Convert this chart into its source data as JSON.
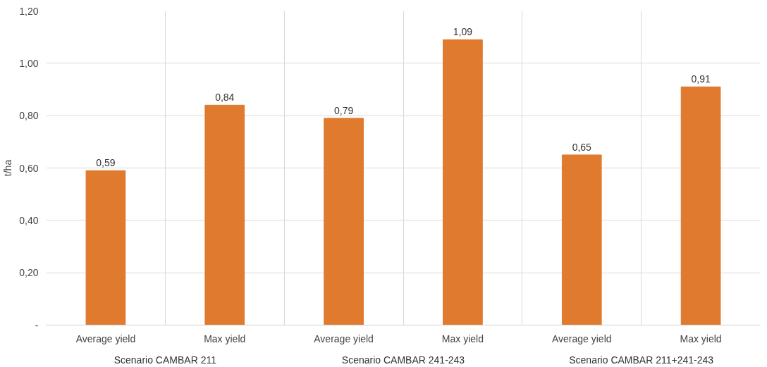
{
  "chart_data": {
    "type": "bar",
    "ylabel": "t/ha",
    "categories": [
      "Average yield",
      "Max yield",
      "Average yield",
      "Max yield",
      "Average yield",
      "Max yield"
    ],
    "values": [
      0.59,
      0.84,
      0.79,
      1.09,
      0.65,
      0.91
    ],
    "value_labels": [
      "0,59",
      "0,84",
      "0,79",
      "1,09",
      "0,65",
      "0,91"
    ],
    "color": "#df7a2f",
    "annotations": [
      "Scenario CAMBAR 211",
      "Scenario CAMBAR 241-243",
      "Scenario CAMBAR 211+241-243"
    ],
    "ylim": [
      0,
      1.2
    ],
    "yticks": [
      {
        "value": 0,
        "label": "-"
      },
      {
        "value": 0.2,
        "label": "0,20"
      },
      {
        "value": 0.4,
        "label": "0,40"
      },
      {
        "value": 0.6,
        "label": "0,60"
      },
      {
        "value": 0.8,
        "label": "0,80"
      },
      {
        "value": 1.0,
        "label": "1,00"
      },
      {
        "value": 1.2,
        "label": "1,20"
      }
    ],
    "grid": true
  }
}
